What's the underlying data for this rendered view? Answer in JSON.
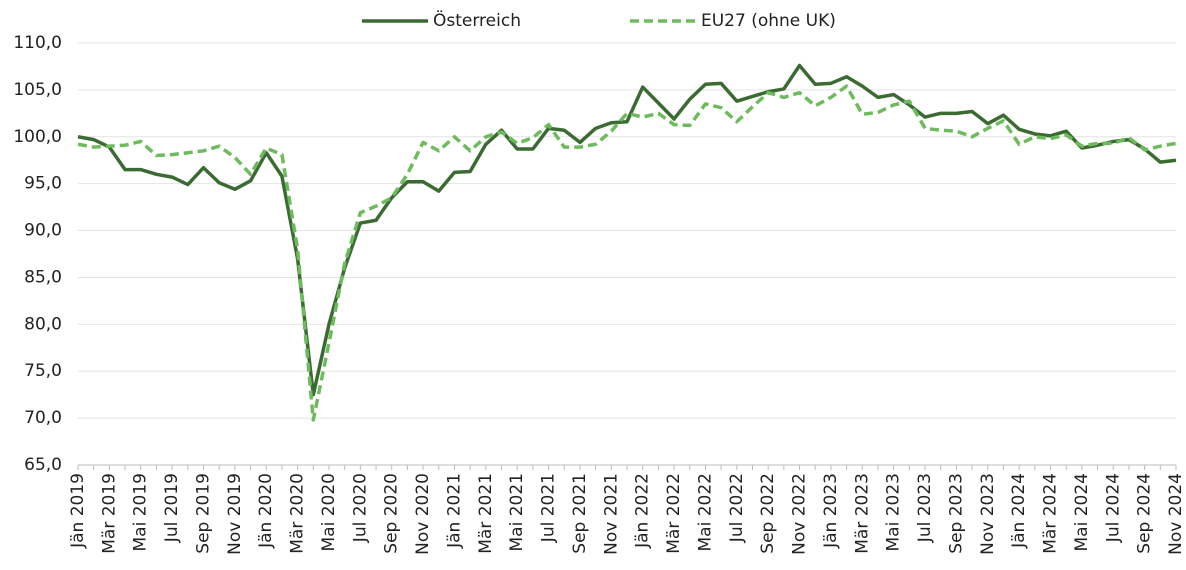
{
  "chart_data": {
    "type": "line",
    "categories": [
      "Jän 2019",
      null,
      "Mär 2019",
      null,
      "Mai 2019",
      null,
      "Jul 2019",
      null,
      "Sep 2019",
      null,
      "Nov 2019",
      null,
      "Jän 2020",
      null,
      "Mär 2020",
      null,
      "Mai 2020",
      null,
      "Jul 2020",
      null,
      "Sep 2020",
      null,
      "Nov 2020",
      null,
      "Jän 2021",
      null,
      "Mär 2021",
      null,
      "Mai 2021",
      null,
      "Jul 2021",
      null,
      "Sep 2021",
      null,
      "Nov 2021",
      null,
      "Jän 2022",
      null,
      "Mär 2022",
      null,
      "Mai 2022",
      null,
      "Jul 2022",
      null,
      "Sep 2022",
      null,
      "Nov 2022",
      null,
      "Jän 2023",
      null,
      "Mär 2023",
      null,
      "Mai 2023",
      null,
      "Jul 2023",
      null,
      "Sep 2023",
      null,
      "Nov 2023",
      null,
      "Jän 2024",
      null,
      "Mär 2024",
      null,
      "Mai 2024",
      null,
      "Jul 2024",
      null,
      "Sep 2024",
      null,
      "Nov 2024"
    ],
    "series": [
      {
        "name": "Österreich",
        "color": "#3b6b32",
        "line_style": "solid",
        "values": [
          100.0,
          99.7,
          98.9,
          96.5,
          96.5,
          96.0,
          95.7,
          94.9,
          96.7,
          95.1,
          94.4,
          95.3,
          98.3,
          95.8,
          87.0,
          72.5,
          80.0,
          86.0,
          90.8,
          91.1,
          93.5,
          95.2,
          95.2,
          94.2,
          96.2,
          96.3,
          99.2,
          100.7,
          98.7,
          98.7,
          100.9,
          100.7,
          99.4,
          100.9,
          101.5,
          101.6,
          105.3,
          103.6,
          101.9,
          104.0,
          105.6,
          105.7,
          103.8,
          104.3,
          104.8,
          105.1,
          107.6,
          105.6,
          105.7,
          106.4,
          105.4,
          104.2,
          104.5,
          103.4,
          102.1,
          102.5,
          102.5,
          102.7,
          101.4,
          102.3,
          100.8,
          100.3,
          100.1,
          100.6,
          98.8,
          99.1,
          99.5,
          99.7,
          98.7,
          97.3,
          97.5
        ]
      },
      {
        "name": "EU27 (ohne UK)",
        "color": "#6dbb5c",
        "line_style": "dashed",
        "values": [
          99.2,
          98.9,
          99.0,
          99.1,
          99.5,
          98.0,
          98.1,
          98.3,
          98.5,
          99.0,
          97.8,
          96.0,
          98.8,
          98.1,
          88.0,
          69.8,
          78.0,
          86.5,
          91.9,
          92.6,
          93.5,
          96.0,
          99.4,
          98.5,
          100.0,
          98.5,
          100.0,
          100.5,
          99.3,
          99.9,
          101.3,
          98.9,
          98.9,
          99.2,
          100.6,
          102.5,
          102.1,
          102.5,
          101.3,
          101.2,
          103.5,
          103.1,
          101.6,
          103.2,
          104.7,
          104.2,
          104.7,
          103.3,
          104.2,
          105.4,
          102.4,
          102.6,
          103.4,
          103.8,
          100.9,
          100.7,
          100.6,
          100.0,
          100.9,
          101.7,
          99.2,
          100.0,
          99.8,
          100.2,
          99.0,
          99.3,
          99.3,
          99.9,
          98.6,
          99.0,
          99.3
        ]
      }
    ],
    "ylim": [
      65,
      110
    ],
    "yticks": [
      {
        "value": 65,
        "label": "65,0"
      },
      {
        "value": 70,
        "label": "70,0"
      },
      {
        "value": 75,
        "label": "75,0"
      },
      {
        "value": 80,
        "label": "80,0"
      },
      {
        "value": 85,
        "label": "85,0"
      },
      {
        "value": 90,
        "label": "90,0"
      },
      {
        "value": 95,
        "label": "95,0"
      },
      {
        "value": 100,
        "label": "100,0"
      },
      {
        "value": 105,
        "label": "105,0"
      },
      {
        "value": 110,
        "label": "110,0"
      }
    ],
    "grid": true,
    "legend": "top"
  }
}
